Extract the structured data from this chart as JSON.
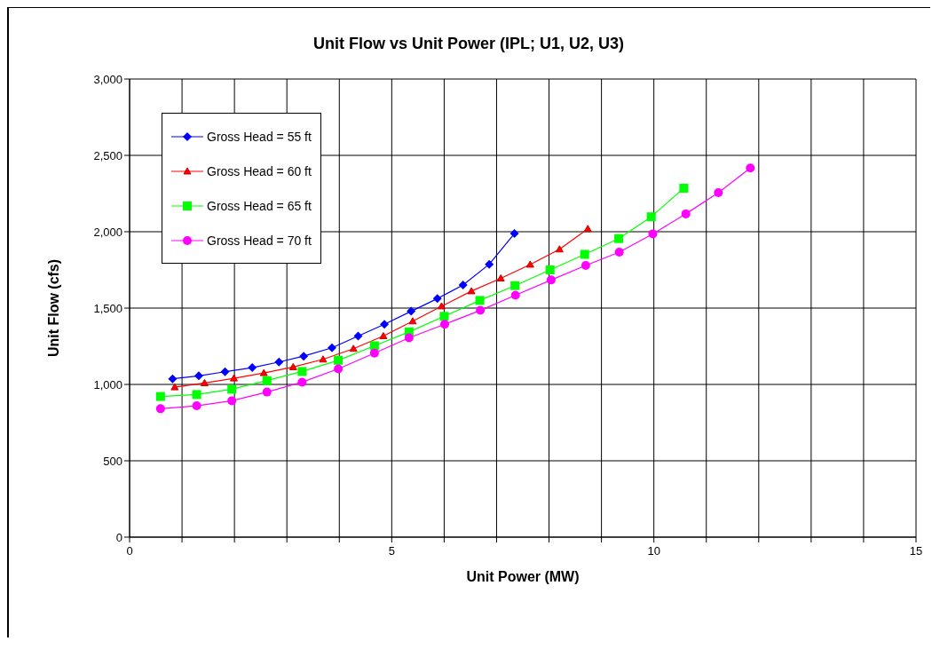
{
  "chart_data": {
    "type": "line",
    "title": "Unit Flow vs Unit Power (IPL; U1, U2, U3)",
    "xlabel": "Unit Power (MW)",
    "ylabel": "Unit Flow (cfs)",
    "xlim": [
      0,
      15
    ],
    "xticks": [
      0,
      {
        "value": 1,
        "label": null
      },
      {
        "value": 2,
        "label": null
      },
      {
        "value": 3,
        "label": null
      },
      {
        "value": 4,
        "label": null
      },
      5,
      {
        "value": 6,
        "label": null
      },
      {
        "value": 7,
        "label": null
      },
      {
        "value": 8,
        "label": null
      },
      {
        "value": 9,
        "label": null
      },
      10,
      {
        "value": 11,
        "label": null
      },
      {
        "value": 12,
        "label": null
      },
      {
        "value": 13,
        "label": null
      },
      {
        "value": 14,
        "label": null
      },
      15
    ],
    "ylim": [
      0,
      3000
    ],
    "yticks": [
      {
        "value": 0,
        "label": "0"
      },
      {
        "value": 500,
        "label": "500"
      },
      {
        "value": 1000,
        "label": "1,000"
      },
      {
        "value": 1500,
        "label": "1,500"
      },
      {
        "value": 2000,
        "label": "2,000"
      },
      {
        "value": 2500,
        "label": "2,500"
      },
      {
        "value": 3000,
        "label": "3,000"
      }
    ],
    "grid": true,
    "legend": "top left",
    "line_style": "solid",
    "series": [
      {
        "name": "Gross Head = 55 ft",
        "color": "#0000ff",
        "marker": "diamond",
        "x": [
          0.82,
          1.32,
          1.82,
          2.34,
          2.85,
          3.32,
          3.86,
          4.36,
          4.86,
          5.37,
          5.87,
          6.36,
          6.86,
          7.34
        ],
        "values": [
          1037,
          1056,
          1083,
          1110,
          1147,
          1185,
          1240,
          1317,
          1394,
          1479,
          1562,
          1651,
          1787,
          1988
        ]
      },
      {
        "name": "Gross Head = 60 ft",
        "color": "#ff0000",
        "marker": "triangle",
        "x": [
          0.86,
          1.43,
          1.99,
          2.56,
          3.12,
          3.69,
          4.27,
          4.84,
          5.4,
          5.95,
          6.52,
          7.08,
          7.64,
          8.2,
          8.74
        ],
        "values": [
          982,
          1009,
          1040,
          1075,
          1114,
          1164,
          1234,
          1317,
          1414,
          1512,
          1611,
          1695,
          1785,
          1885,
          2019
        ]
      },
      {
        "name": "Gross Head = 65 ft",
        "color": "#00ff00",
        "marker": "square",
        "x": [
          0.59,
          1.28,
          1.95,
          2.62,
          3.29,
          3.98,
          4.67,
          5.33,
          6.0,
          6.68,
          7.35,
          8.02,
          8.68,
          9.33,
          9.95,
          10.57
        ],
        "values": [
          921,
          934,
          969,
          1025,
          1085,
          1158,
          1253,
          1344,
          1446,
          1550,
          1647,
          1750,
          1852,
          1955,
          2098,
          2285
        ]
      },
      {
        "name": "Gross Head = 70 ft",
        "color": "#ff00ff",
        "marker": "circle",
        "x": [
          0.59,
          1.28,
          1.95,
          2.62,
          3.29,
          3.98,
          4.67,
          5.33,
          6.01,
          6.69,
          7.36,
          8.04,
          8.7,
          9.34,
          9.98,
          10.61,
          11.23,
          11.84
        ],
        "values": [
          841,
          860,
          893,
          950,
          1015,
          1102,
          1205,
          1305,
          1394,
          1485,
          1584,
          1684,
          1779,
          1866,
          1986,
          2117,
          2256,
          2417
        ]
      }
    ]
  }
}
